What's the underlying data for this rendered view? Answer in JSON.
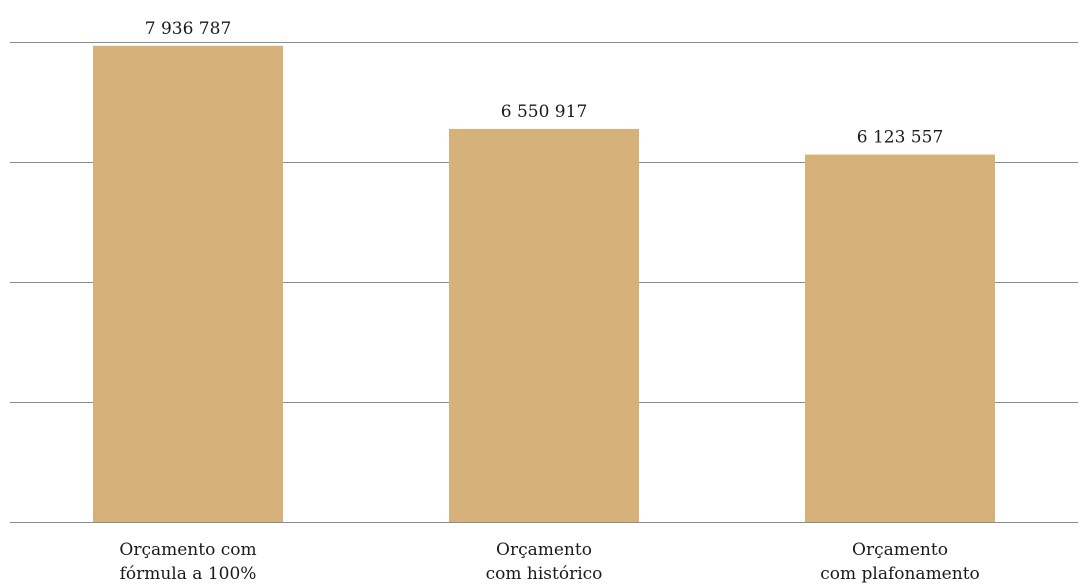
{
  "chart_data": {
    "type": "bar",
    "categories": [
      [
        "Orçamento com",
        "fórmula a 100%"
      ],
      [
        "Orçamento",
        "com histórico"
      ],
      [
        "Orçamento",
        "com plafonamento"
      ]
    ],
    "values": [
      7936787,
      6550917,
      6123557
    ],
    "value_labels": [
      "7 936 787",
      "6 550 917",
      "6 123 557"
    ],
    "ylim": [
      0,
      8000000
    ],
    "grid": true,
    "legend": "none",
    "bar_color": "#d6b27a",
    "grid_color": "#8c8c8c",
    "title": "",
    "xlabel": "",
    "ylabel": ""
  }
}
